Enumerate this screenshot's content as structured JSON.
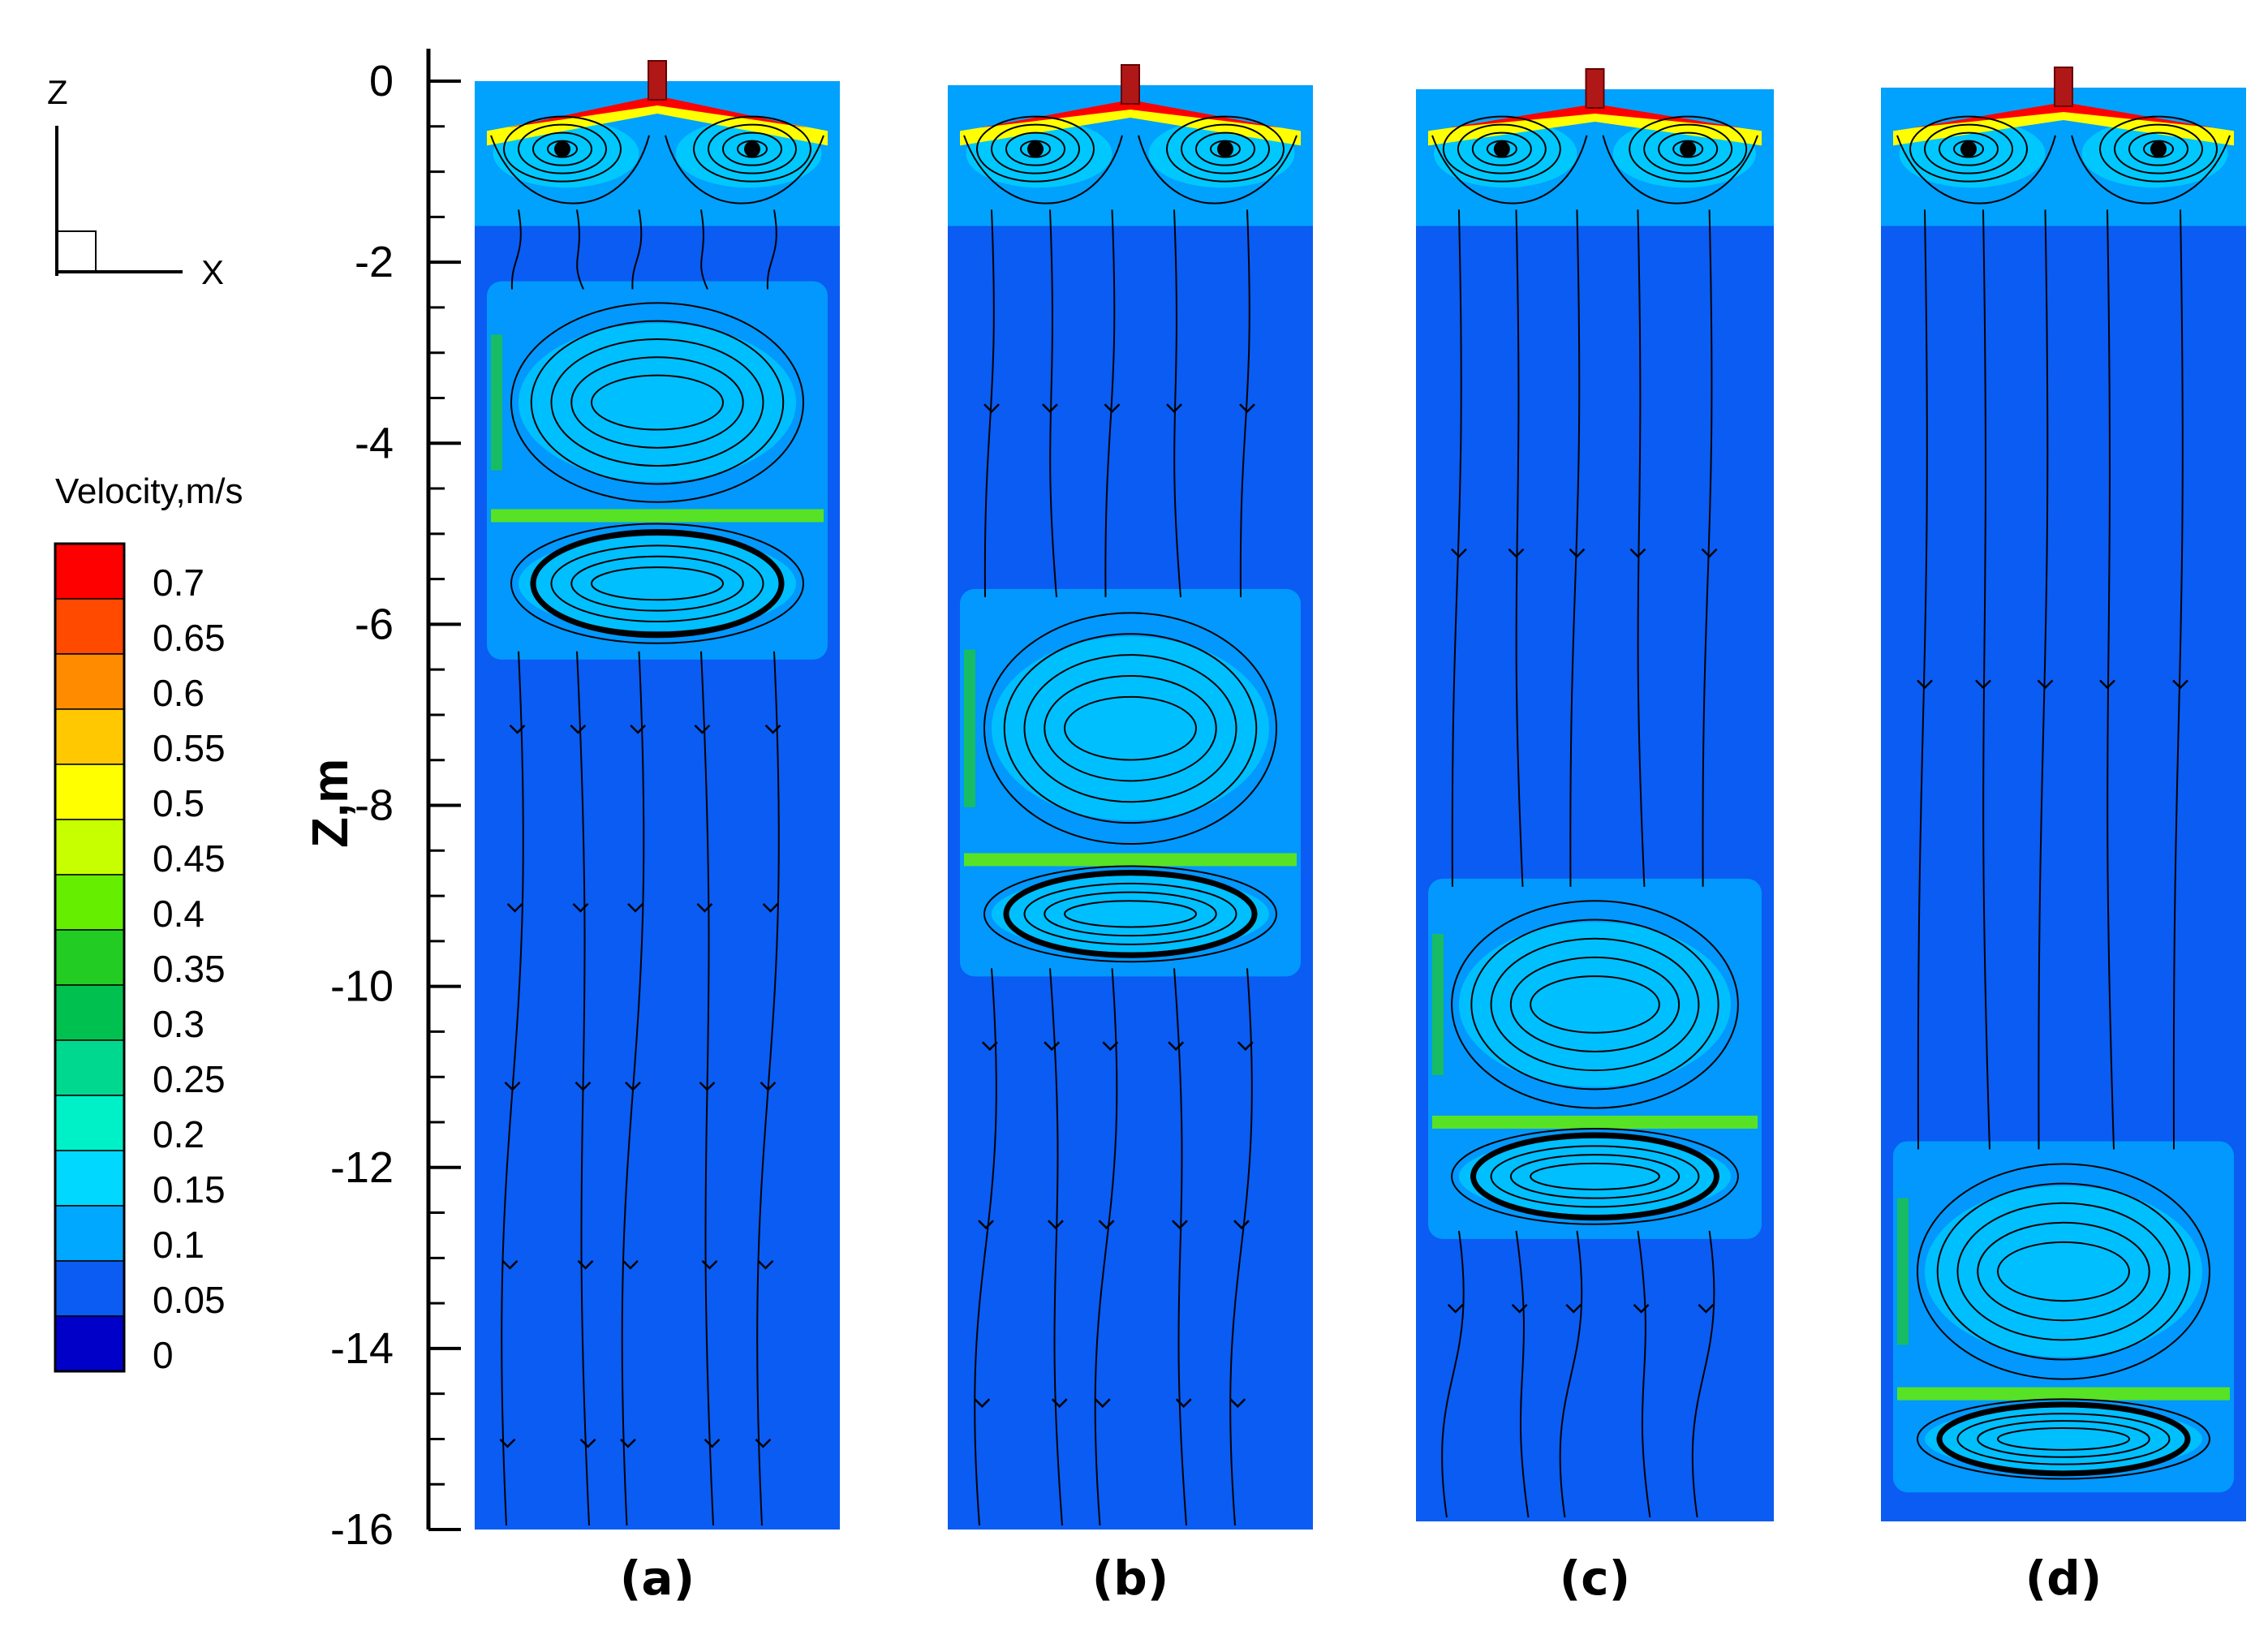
{
  "coordinate_axes": {
    "vertical": "Z",
    "horizontal": "X"
  },
  "legend": {
    "title": "Velocity,m/s",
    "levels": [
      "0.7",
      "0.65",
      "0.6",
      "0.55",
      "0.5",
      "0.45",
      "0.4",
      "0.35",
      "0.3",
      "0.25",
      "0.2",
      "0.15",
      "0.1",
      "0.05",
      "0"
    ],
    "colors": [
      "#ff0000",
      "#ff4a00",
      "#ff8c00",
      "#ffc800",
      "#ffff00",
      "#c8ff00",
      "#66ee00",
      "#22cc22",
      "#00c050",
      "#00d890",
      "#00f0c8",
      "#00d8ff",
      "#00a8ff",
      "#0a5cf2",
      "#0000c8"
    ]
  },
  "y_axis": {
    "label": "Z,m",
    "ticks": [
      "0",
      "-2",
      "-4",
      "-6",
      "-8",
      "-10",
      "-12",
      "-14",
      "-16"
    ],
    "range": [
      -16,
      0
    ]
  },
  "panels": [
    {
      "label": "(a)",
      "lower_vortex_z": [
        -4.8,
        -6.3
      ],
      "upper_vortex_z": [
        -2.3,
        -4.8
      ]
    },
    {
      "label": "(b)",
      "lower_vortex_z": [
        -8.6,
        -9.8
      ],
      "upper_vortex_z": [
        -5.7,
        -8.6
      ]
    },
    {
      "label": "(c)",
      "lower_vortex_z": [
        -11.5,
        -12.7
      ],
      "upper_vortex_z": [
        -8.9,
        -11.5
      ]
    },
    {
      "label": "(d)",
      "lower_vortex_z": [
        -14.5,
        -15.5
      ],
      "upper_vortex_z": [
        -11.8,
        -14.5
      ]
    }
  ],
  "colors": {
    "background": "#0a5cf2",
    "streamline": "#000000",
    "nozzle": "#b01818"
  }
}
